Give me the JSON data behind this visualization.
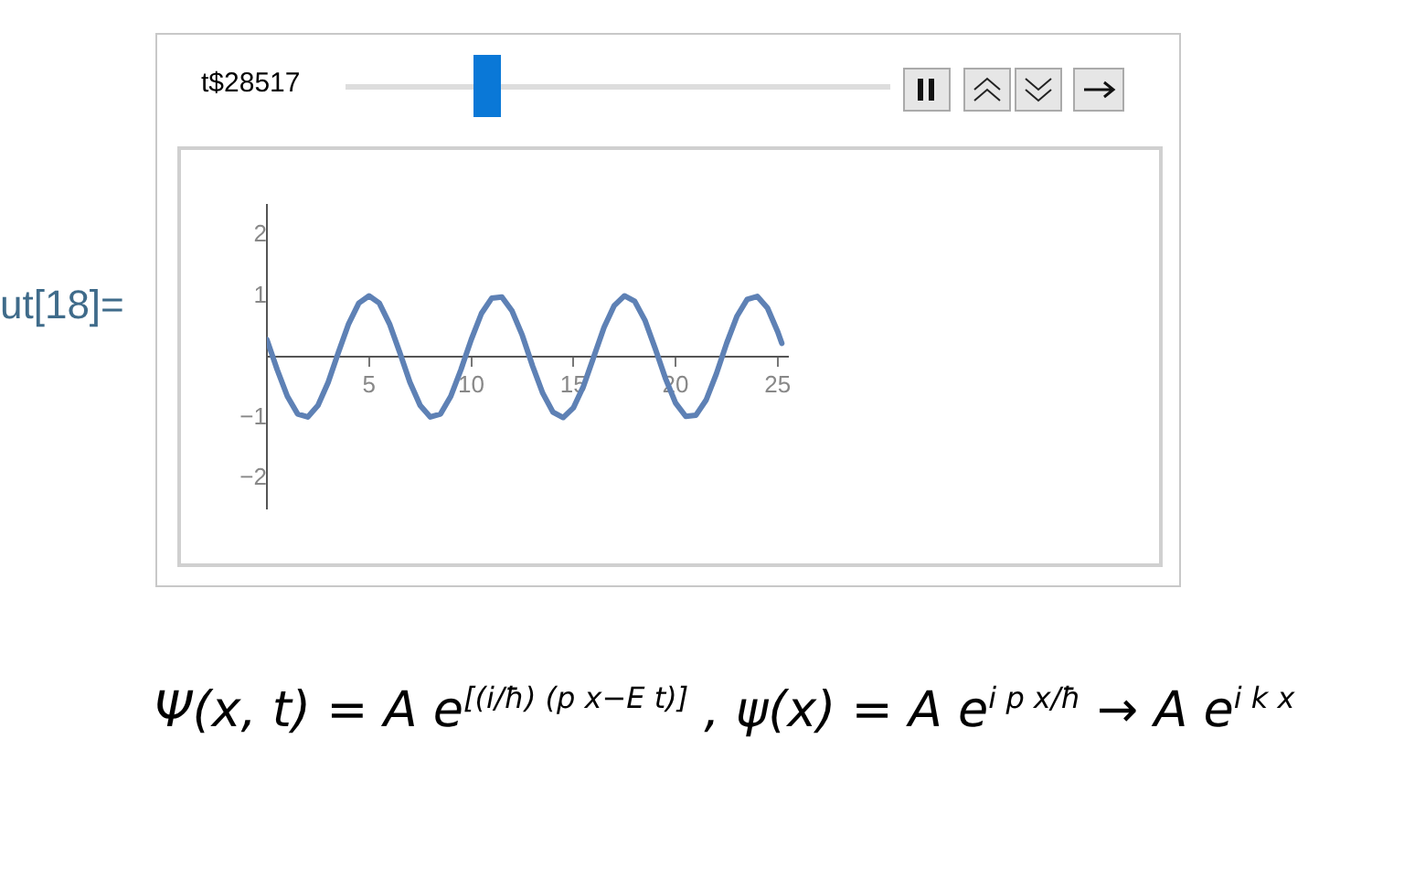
{
  "chart_data": {
    "type": "line",
    "x": [
      0,
      0.5,
      1,
      1.5,
      2,
      2.5,
      3,
      3.5,
      4,
      4.5,
      5,
      5.5,
      6,
      6.5,
      7,
      7.5,
      8,
      8.5,
      9,
      9.5,
      10,
      10.5,
      11,
      11.5,
      12,
      12.5,
      13,
      13.5,
      14,
      14.5,
      15,
      15.5,
      16,
      16.5,
      17,
      17.5,
      18,
      18.5,
      19,
      19.5,
      20,
      20.5,
      21,
      21.5,
      22,
      22.5,
      23,
      23.5,
      24,
      24.5,
      25,
      25.2
    ],
    "series": [
      {
        "color": "#5e81b5",
        "values": [
          0.28,
          -0.21,
          -0.65,
          -0.94,
          -0.99,
          -0.8,
          -0.42,
          0.07,
          0.54,
          0.88,
          1,
          0.88,
          0.54,
          0.07,
          -0.42,
          -0.8,
          -0.99,
          -0.94,
          -0.65,
          -0.21,
          0.28,
          0.71,
          0.96,
          0.98,
          0.75,
          0.35,
          -0.15,
          -0.6,
          -0.91,
          -1,
          -0.84,
          -0.48,
          0,
          0.48,
          0.84,
          1,
          0.91,
          0.6,
          0.14,
          -0.35,
          -0.76,
          -0.98,
          -0.96,
          -0.71,
          -0.28,
          0.22,
          0.66,
          0.94,
          0.99,
          0.8,
          0.41,
          0.22
        ]
      }
    ],
    "xlim": [
      0,
      25.5
    ],
    "xticks": [
      5,
      10,
      15,
      20,
      25
    ],
    "ylim": [
      -2.5,
      2.5
    ],
    "yticks": [
      -2,
      -1,
      1,
      2
    ],
    "grid": false,
    "legend": false,
    "marker": "none",
    "line_style": "solid",
    "annotations": [
      "ut[18]=",
      "t$28517",
      "Ψ(x, t) = A e$^{[(i/ħ) (p x−E t)]}$ ,  ψ(x) = A e$^{i p x/ħ}$ → A e$^{i k x}$"
    ]
  }
}
